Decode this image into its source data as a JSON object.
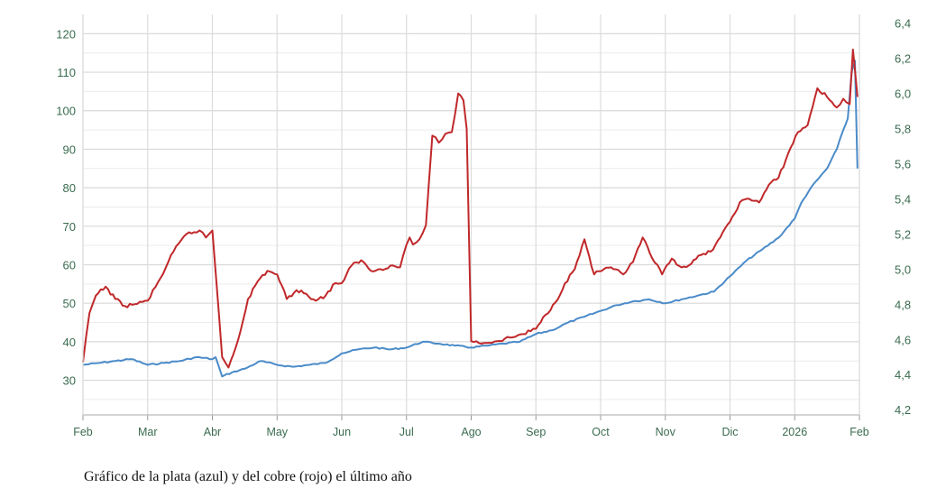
{
  "caption": "Gráfico de la plata (azul) y del cobre (rojo) el último año",
  "chart_data": {
    "type": "line",
    "title": "",
    "xlabel": "",
    "ylabel": "",
    "x_ticks": [
      "Feb",
      "Mar",
      "Abr",
      "May",
      "Jun",
      "Jul",
      "Ago",
      "Sep",
      "Oct",
      "Nov",
      "Dic",
      "2026",
      "Feb"
    ],
    "x_range": [
      0,
      12
    ],
    "y_left": {
      "ticks": [
        "30",
        "40",
        "50",
        "60",
        "70",
        "80",
        "90",
        "100",
        "110",
        "120"
      ],
      "range": [
        21,
        125
      ]
    },
    "y_right": {
      "ticks": [
        "4,2",
        "4,4",
        "4,6",
        "4,8",
        "5,0",
        "5,2",
        "5,4",
        "5,6",
        "5,8",
        "6,0",
        "6,2",
        "6,4"
      ],
      "range": [
        4.17,
        6.45
      ]
    },
    "grid": true,
    "series": [
      {
        "color": "#4a8bc9",
        "axis": "left",
        "x": [
          0,
          0.25,
          0.5,
          0.75,
          1,
          1.25,
          1.5,
          1.75,
          2,
          2.05,
          2.15,
          2.3,
          2.5,
          2.75,
          3,
          3.25,
          3.5,
          3.75,
          4,
          4.25,
          4.5,
          4.75,
          5,
          5.25,
          5.5,
          5.75,
          6,
          6.25,
          6.5,
          6.75,
          7,
          7.25,
          7.5,
          7.75,
          8,
          8.25,
          8.5,
          8.75,
          9,
          9.25,
          9.5,
          9.75,
          10,
          10.25,
          10.5,
          10.75,
          11,
          11.1,
          11.25,
          11.5,
          11.65,
          11.75,
          11.82,
          11.88,
          11.93,
          11.97
        ],
        "y": [
          34,
          34.5,
          35,
          35.5,
          34,
          34.5,
          35,
          36,
          35.5,
          36,
          31,
          32,
          33,
          35,
          34,
          33.5,
          34,
          34.5,
          37,
          38,
          38.5,
          38,
          38.5,
          40,
          39.5,
          39,
          38.5,
          39,
          39.5,
          40,
          42,
          43,
          45,
          46.5,
          48,
          49.5,
          50.5,
          51,
          50,
          51,
          52,
          53,
          57,
          61,
          64,
          67,
          72,
          76,
          80,
          85,
          90,
          95,
          98,
          110,
          113,
          85
        ]
      },
      {
        "color": "#c0282a",
        "axis": "right",
        "x": [
          0,
          0.1,
          0.2,
          0.35,
          0.5,
          0.65,
          0.8,
          1,
          1.2,
          1.4,
          1.6,
          1.8,
          1.9,
          2,
          2.1,
          2.15,
          2.25,
          2.4,
          2.55,
          2.7,
          2.85,
          3,
          3.15,
          3.3,
          3.45,
          3.6,
          3.75,
          3.9,
          4,
          4.15,
          4.3,
          4.45,
          4.6,
          4.75,
          4.9,
          5,
          5.05,
          5.1,
          5.2,
          5.3,
          5.4,
          5.5,
          5.6,
          5.7,
          5.8,
          5.88,
          5.93,
          6,
          6.2,
          6.4,
          6.6,
          6.8,
          7,
          7.15,
          7.3,
          7.45,
          7.6,
          7.75,
          7.9,
          8.05,
          8.2,
          8.35,
          8.5,
          8.65,
          8.8,
          8.95,
          9.1,
          9.25,
          9.4,
          9.55,
          9.7,
          9.85,
          10,
          10.15,
          10.3,
          10.45,
          10.6,
          10.75,
          10.9,
          11.05,
          11.2,
          11.35,
          11.5,
          11.65,
          11.75,
          11.85,
          11.9,
          11.94,
          11.97
        ],
        "y": [
          4.47,
          4.75,
          4.85,
          4.9,
          4.83,
          4.79,
          4.8,
          4.82,
          4.95,
          5.1,
          5.2,
          5.22,
          5.18,
          5.22,
          4.75,
          4.5,
          4.44,
          4.6,
          4.83,
          4.93,
          4.99,
          4.97,
          4.83,
          4.88,
          4.86,
          4.82,
          4.85,
          4.92,
          4.92,
          5.02,
          5.05,
          4.99,
          5.0,
          5.02,
          5.01,
          5.14,
          5.18,
          5.14,
          5.17,
          5.25,
          5.76,
          5.72,
          5.77,
          5.78,
          6.0,
          5.96,
          5.8,
          4.59,
          4.58,
          4.59,
          4.61,
          4.63,
          4.66,
          4.74,
          4.81,
          4.92,
          5.0,
          5.17,
          4.97,
          5.0,
          5.0,
          4.97,
          5.04,
          5.18,
          5.06,
          4.97,
          5.06,
          5.01,
          5.03,
          5.08,
          5.1,
          5.18,
          5.27,
          5.38,
          5.4,
          5.38,
          5.48,
          5.52,
          5.66,
          5.78,
          5.82,
          6.03,
          5.98,
          5.92,
          5.97,
          5.94,
          6.25,
          6.1,
          5.98
        ]
      }
    ]
  }
}
